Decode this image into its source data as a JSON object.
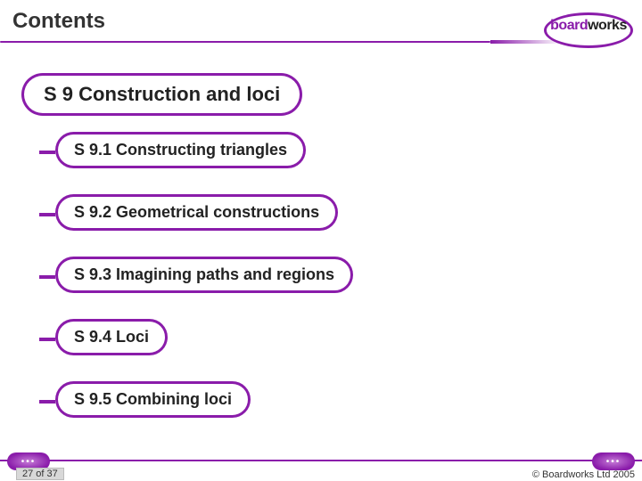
{
  "header": {
    "title": "Contents",
    "logo_part1": "board",
    "logo_part2": "works"
  },
  "main": {
    "heading": "S 9 Construction and loci",
    "items": [
      {
        "label": "S 9.1 Constructing triangles"
      },
      {
        "label": "S 9.2 Geometrical constructions"
      },
      {
        "label": "S 9.3 Imagining paths and regions"
      },
      {
        "label": "S 9.4 Loci"
      },
      {
        "label": "S 9.5 Combining loci"
      }
    ]
  },
  "footer": {
    "page_indicator": "27 of 37",
    "copyright": "© Boardworks Ltd 2005"
  },
  "colors": {
    "accent": "#8a1caa",
    "text": "#222222",
    "bg": "#ffffff"
  }
}
